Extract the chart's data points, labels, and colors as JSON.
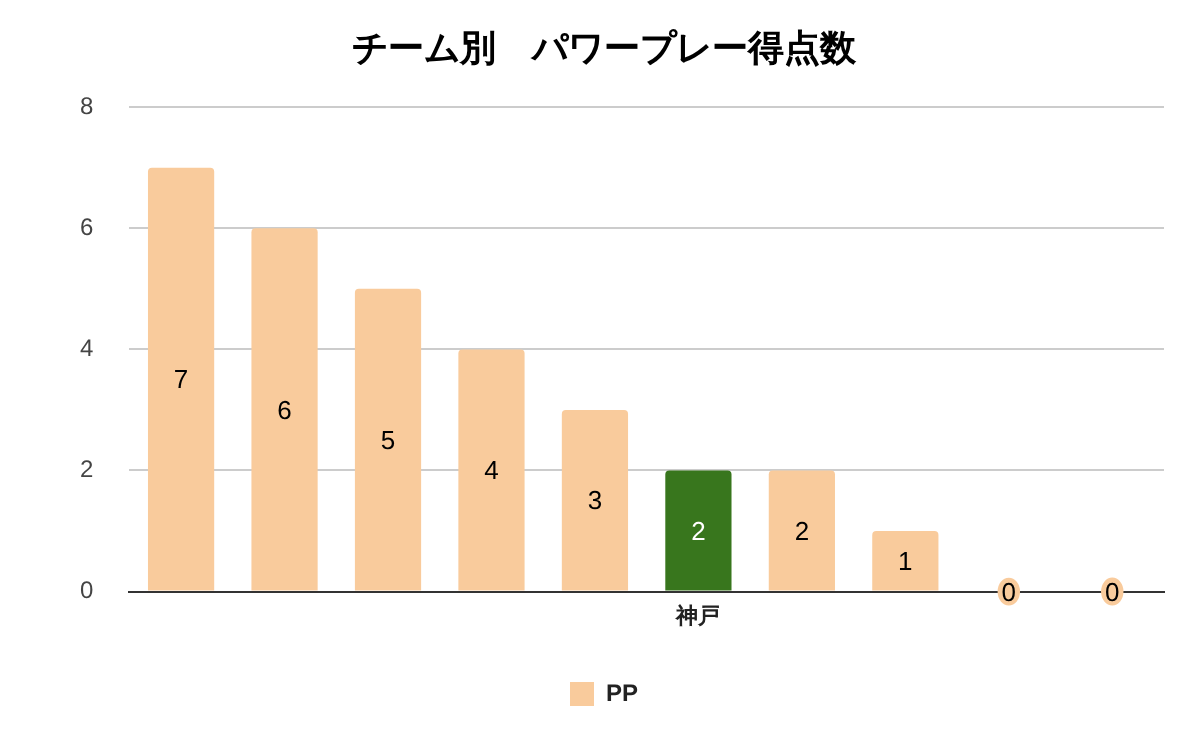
{
  "chart_data": {
    "type": "bar",
    "title": "チーム別　パワープレー得点数",
    "categories": [
      null,
      null,
      null,
      null,
      null,
      "神戸",
      null,
      null,
      null,
      null
    ],
    "series": [
      {
        "name": "PP",
        "color": "#f9cb9c",
        "colors": [
          "#f9cb9c",
          "#f9cb9c",
          "#f9cb9c",
          "#f9cb9c",
          "#f9cb9c",
          "#38761d",
          "#f9cb9c",
          "#f9cb9c",
          "#f9cb9c",
          "#f9cb9c"
        ],
        "values": [
          7,
          6,
          5,
          4,
          3,
          2,
          2,
          1,
          0,
          0
        ]
      }
    ],
    "ylim": [
      0,
      8
    ],
    "yticks": [
      0,
      2,
      4,
      6,
      8
    ],
    "grid": "y",
    "legend": "bottom",
    "data_labels": true
  }
}
